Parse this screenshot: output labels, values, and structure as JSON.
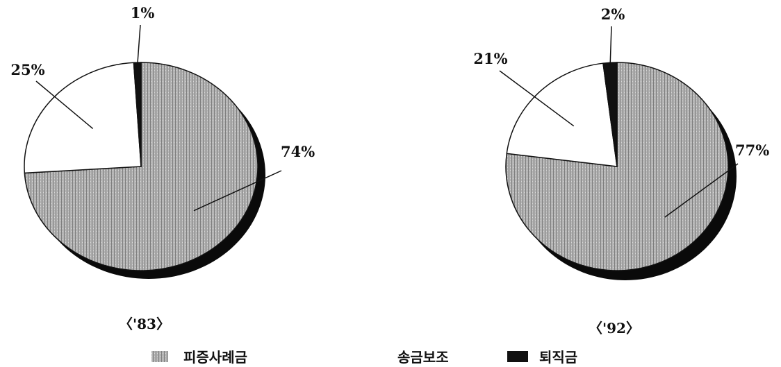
{
  "chart_data": [
    {
      "type": "pie",
      "title": "",
      "caption": "〈'83〉",
      "series": [
        {
          "name": "피증사례금",
          "value": 74,
          "label": "74%"
        },
        {
          "name": "송금보조",
          "value": 25,
          "label": "25%"
        },
        {
          "name": "퇴직금",
          "value": 1,
          "label": "1%"
        }
      ]
    },
    {
      "type": "pie",
      "title": "",
      "caption": "〈'92〉",
      "series": [
        {
          "name": "피증사례금",
          "value": 77,
          "label": "77%"
        },
        {
          "name": "송금보조",
          "value": 21,
          "label": "21%"
        },
        {
          "name": "퇴직금",
          "value": 2,
          "label": "2%"
        }
      ]
    }
  ],
  "legend": {
    "placement": "bottom",
    "items": [
      {
        "label": "피증사례금",
        "swatch": "hatched-gray"
      },
      {
        "label": "송금보조",
        "swatch": "none"
      },
      {
        "label": "퇴직금",
        "swatch": "black"
      }
    ]
  },
  "colors": {
    "slice_main": "#a9a9a9",
    "slice_white": "#ffffff",
    "slice_dark": "#111111",
    "shadow": "#0a0a0a"
  }
}
